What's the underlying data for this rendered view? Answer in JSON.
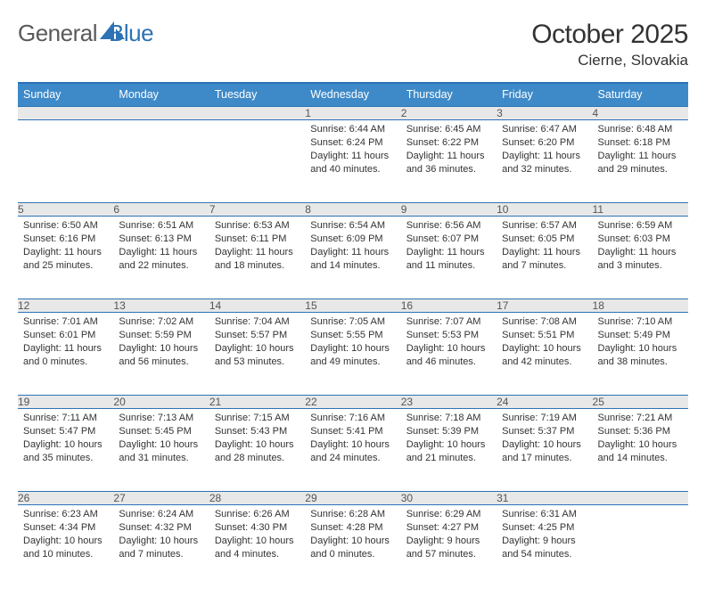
{
  "brand": {
    "part1": "General",
    "part2": "Blue"
  },
  "title": {
    "month": "October 2025",
    "location": "Cierne, Slovakia"
  },
  "colors": {
    "header_bg": "#3e8ac9",
    "header_border": "#2d72b5",
    "daynum_bg": "#e8e8e8",
    "text": "#333333",
    "logo_gray": "#5a5a5a",
    "logo_blue": "#2d72b5"
  },
  "weekdays": [
    "Sunday",
    "Monday",
    "Tuesday",
    "Wednesday",
    "Thursday",
    "Friday",
    "Saturday"
  ],
  "weeks": [
    [
      null,
      null,
      null,
      {
        "n": "1",
        "sr": "6:44 AM",
        "ss": "6:24 PM",
        "dl": "11 hours and 40 minutes."
      },
      {
        "n": "2",
        "sr": "6:45 AM",
        "ss": "6:22 PM",
        "dl": "11 hours and 36 minutes."
      },
      {
        "n": "3",
        "sr": "6:47 AM",
        "ss": "6:20 PM",
        "dl": "11 hours and 32 minutes."
      },
      {
        "n": "4",
        "sr": "6:48 AM",
        "ss": "6:18 PM",
        "dl": "11 hours and 29 minutes."
      }
    ],
    [
      {
        "n": "5",
        "sr": "6:50 AM",
        "ss": "6:16 PM",
        "dl": "11 hours and 25 minutes."
      },
      {
        "n": "6",
        "sr": "6:51 AM",
        "ss": "6:13 PM",
        "dl": "11 hours and 22 minutes."
      },
      {
        "n": "7",
        "sr": "6:53 AM",
        "ss": "6:11 PM",
        "dl": "11 hours and 18 minutes."
      },
      {
        "n": "8",
        "sr": "6:54 AM",
        "ss": "6:09 PM",
        "dl": "11 hours and 14 minutes."
      },
      {
        "n": "9",
        "sr": "6:56 AM",
        "ss": "6:07 PM",
        "dl": "11 hours and 11 minutes."
      },
      {
        "n": "10",
        "sr": "6:57 AM",
        "ss": "6:05 PM",
        "dl": "11 hours and 7 minutes."
      },
      {
        "n": "11",
        "sr": "6:59 AM",
        "ss": "6:03 PM",
        "dl": "11 hours and 3 minutes."
      }
    ],
    [
      {
        "n": "12",
        "sr": "7:01 AM",
        "ss": "6:01 PM",
        "dl": "11 hours and 0 minutes."
      },
      {
        "n": "13",
        "sr": "7:02 AM",
        "ss": "5:59 PM",
        "dl": "10 hours and 56 minutes."
      },
      {
        "n": "14",
        "sr": "7:04 AM",
        "ss": "5:57 PM",
        "dl": "10 hours and 53 minutes."
      },
      {
        "n": "15",
        "sr": "7:05 AM",
        "ss": "5:55 PM",
        "dl": "10 hours and 49 minutes."
      },
      {
        "n": "16",
        "sr": "7:07 AM",
        "ss": "5:53 PM",
        "dl": "10 hours and 46 minutes."
      },
      {
        "n": "17",
        "sr": "7:08 AM",
        "ss": "5:51 PM",
        "dl": "10 hours and 42 minutes."
      },
      {
        "n": "18",
        "sr": "7:10 AM",
        "ss": "5:49 PM",
        "dl": "10 hours and 38 minutes."
      }
    ],
    [
      {
        "n": "19",
        "sr": "7:11 AM",
        "ss": "5:47 PM",
        "dl": "10 hours and 35 minutes."
      },
      {
        "n": "20",
        "sr": "7:13 AM",
        "ss": "5:45 PM",
        "dl": "10 hours and 31 minutes."
      },
      {
        "n": "21",
        "sr": "7:15 AM",
        "ss": "5:43 PM",
        "dl": "10 hours and 28 minutes."
      },
      {
        "n": "22",
        "sr": "7:16 AM",
        "ss": "5:41 PM",
        "dl": "10 hours and 24 minutes."
      },
      {
        "n": "23",
        "sr": "7:18 AM",
        "ss": "5:39 PM",
        "dl": "10 hours and 21 minutes."
      },
      {
        "n": "24",
        "sr": "7:19 AM",
        "ss": "5:37 PM",
        "dl": "10 hours and 17 minutes."
      },
      {
        "n": "25",
        "sr": "7:21 AM",
        "ss": "5:36 PM",
        "dl": "10 hours and 14 minutes."
      }
    ],
    [
      {
        "n": "26",
        "sr": "6:23 AM",
        "ss": "4:34 PM",
        "dl": "10 hours and 10 minutes."
      },
      {
        "n": "27",
        "sr": "6:24 AM",
        "ss": "4:32 PM",
        "dl": "10 hours and 7 minutes."
      },
      {
        "n": "28",
        "sr": "6:26 AM",
        "ss": "4:30 PM",
        "dl": "10 hours and 4 minutes."
      },
      {
        "n": "29",
        "sr": "6:28 AM",
        "ss": "4:28 PM",
        "dl": "10 hours and 0 minutes."
      },
      {
        "n": "30",
        "sr": "6:29 AM",
        "ss": "4:27 PM",
        "dl": "9 hours and 57 minutes."
      },
      {
        "n": "31",
        "sr": "6:31 AM",
        "ss": "4:25 PM",
        "dl": "9 hours and 54 minutes."
      },
      null
    ]
  ],
  "labels": {
    "sunrise": "Sunrise:",
    "sunset": "Sunset:",
    "daylight": "Daylight:"
  }
}
